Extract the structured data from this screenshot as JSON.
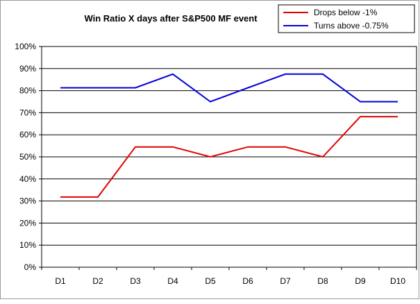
{
  "chart_data": {
    "type": "line",
    "title": "Win Ratio X days after S&P500 MF event",
    "xlabel": "",
    "ylabel": "",
    "categories": [
      "D1",
      "D2",
      "D3",
      "D4",
      "D5",
      "D6",
      "D7",
      "D8",
      "D9",
      "D10"
    ],
    "series": [
      {
        "name": "Drops below -1%",
        "color": "#e00000",
        "values": [
          31.8,
          31.8,
          54.5,
          54.5,
          50.0,
          54.5,
          54.5,
          50.0,
          68.2,
          68.2
        ]
      },
      {
        "name": "Turns above -0.75%",
        "color": "#0000d8",
        "values": [
          81.3,
          81.3,
          81.3,
          87.5,
          75.0,
          81.3,
          87.5,
          87.5,
          75.0,
          75.0
        ]
      }
    ],
    "ylim": [
      0,
      100
    ],
    "yticks": [
      "0%",
      "10%",
      "20%",
      "30%",
      "40%",
      "50%",
      "60%",
      "70%",
      "80%",
      "90%",
      "100%"
    ],
    "grid": true,
    "legend_position": "top-right"
  }
}
